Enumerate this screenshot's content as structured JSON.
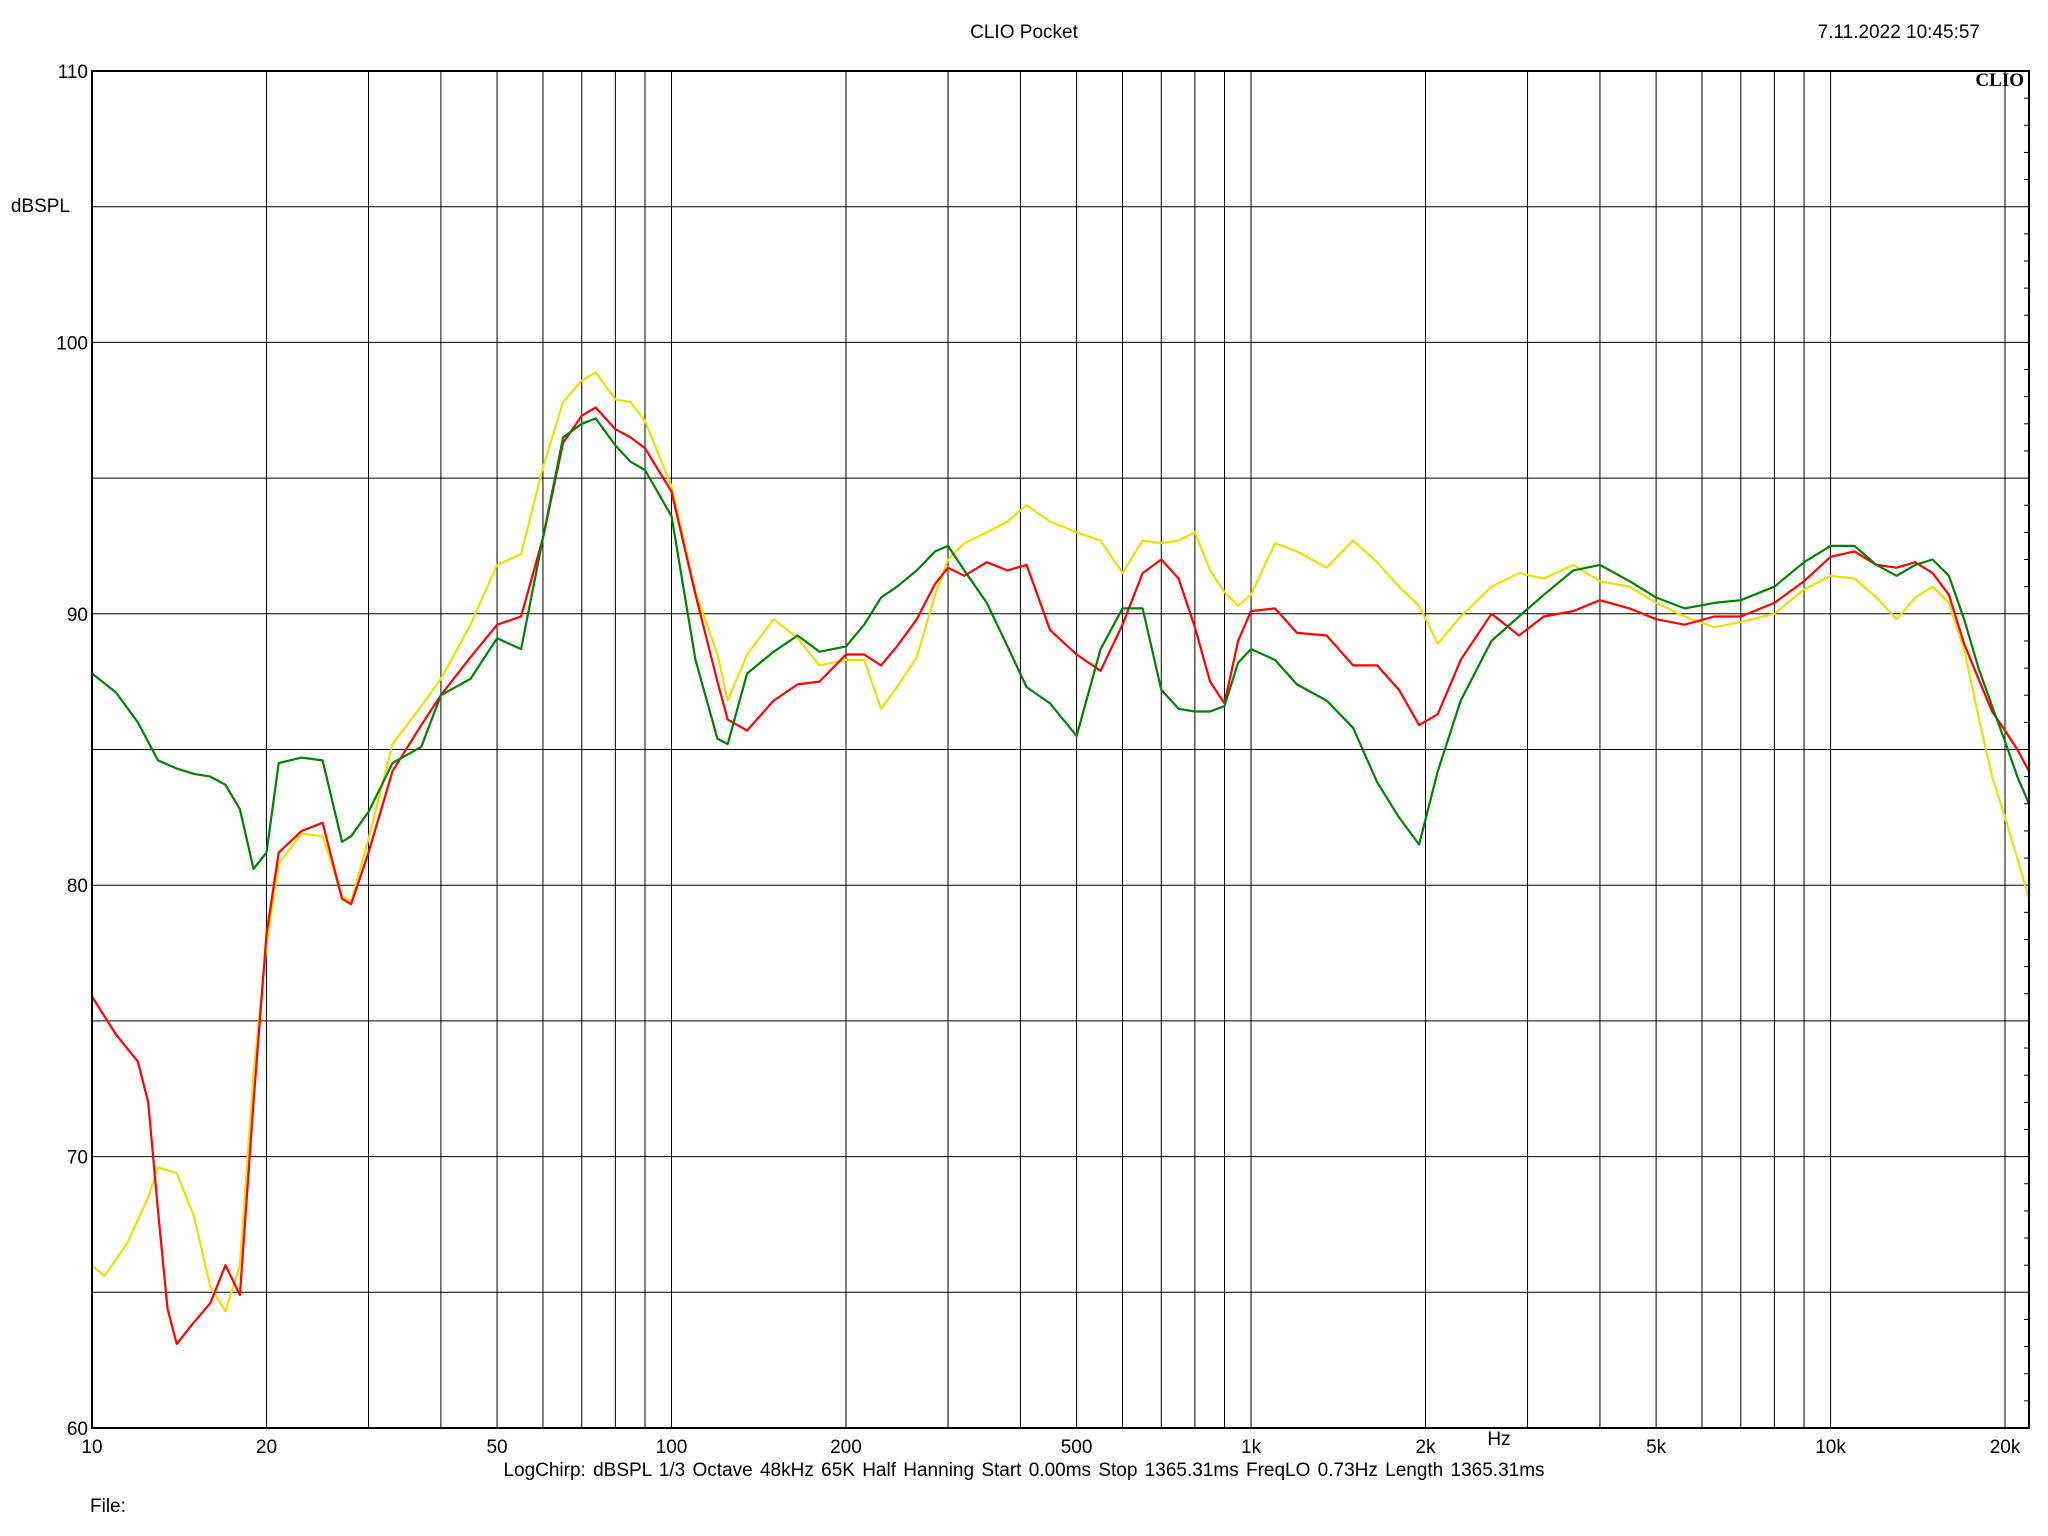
{
  "header": {
    "title": "CLIO Pocket",
    "datetime": "7.11.2022 10:45:57",
    "brand": "CLIO"
  },
  "footer": {
    "settings": "LogChirp:  dBSPL   1/3 Octave   48kHz   65K   Half Hanning   Start 0.00ms    Stop 1365.31ms    FreqLO 0.73Hz    Length 1365.31ms",
    "file_label": "File:"
  },
  "chart_data": {
    "type": "line",
    "title": "CLIO Pocket",
    "xlabel": "Hz",
    "ylabel": "dBSPL",
    "x_scale": "log",
    "xlim": [
      10,
      22000
    ],
    "ylim": [
      60,
      110
    ],
    "grid": true,
    "legend": "none",
    "y_ticks": [
      60,
      70,
      80,
      90,
      100,
      110
    ],
    "x_ticks": [
      {
        "value": 10,
        "label": "10"
      },
      {
        "value": 20,
        "label": "20"
      },
      {
        "value": 50,
        "label": "50"
      },
      {
        "value": 100,
        "label": "100"
      },
      {
        "value": 200,
        "label": "200"
      },
      {
        "value": 500,
        "label": "500"
      },
      {
        "value": 1000,
        "label": "1k"
      },
      {
        "value": 2000,
        "label": "2k"
      },
      {
        "value": 5000,
        "label": "5k"
      },
      {
        "value": 10000,
        "label": "10k"
      },
      {
        "value": 20000,
        "label": "20k"
      }
    ],
    "series": [
      {
        "color": "#e8e000",
        "points": [
          [
            10,
            66
          ],
          [
            10.5,
            65.6
          ],
          [
            11.5,
            66.8
          ],
          [
            12.5,
            68.5
          ],
          [
            13,
            69.6
          ],
          [
            14,
            69.4
          ],
          [
            15,
            67.8
          ],
          [
            16,
            65.2
          ],
          [
            17,
            64.3
          ],
          [
            18,
            66
          ],
          [
            19,
            73
          ],
          [
            20,
            77.8
          ],
          [
            21,
            80.8
          ],
          [
            23,
            81.9
          ],
          [
            25,
            81.8
          ],
          [
            27,
            79.6
          ],
          [
            28,
            79.4
          ],
          [
            30,
            81.7
          ],
          [
            33,
            85.2
          ],
          [
            37,
            86.6
          ],
          [
            40,
            87.6
          ],
          [
            45,
            89.6
          ],
          [
            50,
            91.8
          ],
          [
            55,
            92.2
          ],
          [
            60,
            95.4
          ],
          [
            65,
            97.8
          ],
          [
            70,
            98.6
          ],
          [
            74,
            98.9
          ],
          [
            80,
            97.9
          ],
          [
            85,
            97.8
          ],
          [
            90,
            97.1
          ],
          [
            100,
            94.7
          ],
          [
            110,
            90.8
          ],
          [
            120,
            88.5
          ],
          [
            125,
            86.8
          ],
          [
            135,
            88.5
          ],
          [
            150,
            89.8
          ],
          [
            165,
            89.1
          ],
          [
            180,
            88.1
          ],
          [
            200,
            88.3
          ],
          [
            215,
            88.3
          ],
          [
            230,
            86.5
          ],
          [
            245,
            87.3
          ],
          [
            265,
            88.4
          ],
          [
            285,
            90.7
          ],
          [
            300,
            92
          ],
          [
            320,
            92.6
          ],
          [
            350,
            93
          ],
          [
            380,
            93.4
          ],
          [
            410,
            94
          ],
          [
            450,
            93.4
          ],
          [
            500,
            93
          ],
          [
            550,
            92.7
          ],
          [
            600,
            91.5
          ],
          [
            650,
            92.7
          ],
          [
            700,
            92.6
          ],
          [
            750,
            92.7
          ],
          [
            800,
            93
          ],
          [
            850,
            91.6
          ],
          [
            900,
            90.8
          ],
          [
            950,
            90.3
          ],
          [
            1000,
            90.7
          ],
          [
            1100,
            92.6
          ],
          [
            1200,
            92.3
          ],
          [
            1350,
            91.7
          ],
          [
            1500,
            92.7
          ],
          [
            1650,
            91.9
          ],
          [
            1800,
            91
          ],
          [
            1950,
            90.3
          ],
          [
            2100,
            88.9
          ],
          [
            2300,
            89.9
          ],
          [
            2600,
            91
          ],
          [
            2900,
            91.5
          ],
          [
            3200,
            91.3
          ],
          [
            3600,
            91.8
          ],
          [
            4000,
            91.2
          ],
          [
            4500,
            91
          ],
          [
            5000,
            90.4
          ],
          [
            5600,
            89.9
          ],
          [
            6300,
            89.5
          ],
          [
            7000,
            89.7
          ],
          [
            8000,
            90
          ],
          [
            9000,
            90.9
          ],
          [
            10000,
            91.4
          ],
          [
            11000,
            91.3
          ],
          [
            12000,
            90.6
          ],
          [
            13000,
            89.8
          ],
          [
            14000,
            90.6
          ],
          [
            15000,
            91
          ],
          [
            16000,
            90.4
          ],
          [
            17000,
            88.7
          ],
          [
            18000,
            86.2
          ],
          [
            19000,
            84
          ],
          [
            20000,
            82.5
          ],
          [
            21000,
            81
          ],
          [
            22000,
            79.5
          ]
        ]
      },
      {
        "color": "#ff0000",
        "points": [
          [
            10,
            75.9
          ],
          [
            11,
            74.5
          ],
          [
            12,
            73.5
          ],
          [
            12.5,
            72
          ],
          [
            13,
            68
          ],
          [
            13.5,
            64.4
          ],
          [
            14,
            63.1
          ],
          [
            15,
            63.9
          ],
          [
            16,
            64.6
          ],
          [
            17,
            66
          ],
          [
            18,
            64.9
          ],
          [
            19,
            72
          ],
          [
            20,
            78.2
          ],
          [
            21,
            81.2
          ],
          [
            23,
            82
          ],
          [
            25,
            82.3
          ],
          [
            27,
            79.5
          ],
          [
            28,
            79.3
          ],
          [
            30,
            81.2
          ],
          [
            33,
            84.2
          ],
          [
            37,
            85.9
          ],
          [
            40,
            87
          ],
          [
            45,
            88.4
          ],
          [
            50,
            89.6
          ],
          [
            55,
            89.9
          ],
          [
            60,
            92.8
          ],
          [
            65,
            96.3
          ],
          [
            70,
            97.3
          ],
          [
            74,
            97.6
          ],
          [
            80,
            96.8
          ],
          [
            85,
            96.5
          ],
          [
            90,
            96.1
          ],
          [
            100,
            94.5
          ],
          [
            110,
            90.7
          ],
          [
            120,
            87.5
          ],
          [
            125,
            86.1
          ],
          [
            135,
            85.7
          ],
          [
            150,
            86.8
          ],
          [
            165,
            87.4
          ],
          [
            180,
            87.5
          ],
          [
            200,
            88.5
          ],
          [
            215,
            88.5
          ],
          [
            230,
            88.1
          ],
          [
            245,
            88.8
          ],
          [
            265,
            89.8
          ],
          [
            285,
            91.1
          ],
          [
            300,
            91.7
          ],
          [
            320,
            91.4
          ],
          [
            350,
            91.9
          ],
          [
            380,
            91.6
          ],
          [
            410,
            91.8
          ],
          [
            450,
            89.4
          ],
          [
            500,
            88.5
          ],
          [
            550,
            87.9
          ],
          [
            600,
            89.6
          ],
          [
            650,
            91.5
          ],
          [
            700,
            92
          ],
          [
            750,
            91.3
          ],
          [
            800,
            89.5
          ],
          [
            850,
            87.5
          ],
          [
            900,
            86.7
          ],
          [
            950,
            89
          ],
          [
            1000,
            90.1
          ],
          [
            1100,
            90.2
          ],
          [
            1200,
            89.3
          ],
          [
            1350,
            89.2
          ],
          [
            1500,
            88.1
          ],
          [
            1650,
            88.1
          ],
          [
            1800,
            87.2
          ],
          [
            1950,
            85.9
          ],
          [
            2100,
            86.3
          ],
          [
            2300,
            88.3
          ],
          [
            2600,
            90
          ],
          [
            2900,
            89.2
          ],
          [
            3200,
            89.9
          ],
          [
            3600,
            90.1
          ],
          [
            4000,
            90.5
          ],
          [
            4500,
            90.2
          ],
          [
            5000,
            89.8
          ],
          [
            5600,
            89.6
          ],
          [
            6300,
            89.9
          ],
          [
            7000,
            89.9
          ],
          [
            8000,
            90.4
          ],
          [
            9000,
            91.2
          ],
          [
            10000,
            92.1
          ],
          [
            11000,
            92.3
          ],
          [
            12000,
            91.8
          ],
          [
            13000,
            91.7
          ],
          [
            14000,
            91.9
          ],
          [
            15000,
            91.5
          ],
          [
            16000,
            90.7
          ],
          [
            17000,
            88.9
          ],
          [
            18000,
            87.6
          ],
          [
            19000,
            86.4
          ],
          [
            20000,
            85.7
          ],
          [
            21000,
            85
          ],
          [
            22000,
            84.2
          ]
        ]
      },
      {
        "color": "#008000",
        "points": [
          [
            10,
            87.8
          ],
          [
            11,
            87.1
          ],
          [
            12,
            86
          ],
          [
            13,
            84.6
          ],
          [
            14,
            84.3
          ],
          [
            15,
            84.1
          ],
          [
            16,
            84
          ],
          [
            17,
            83.7
          ],
          [
            18,
            82.8
          ],
          [
            19,
            80.6
          ],
          [
            20,
            81.2
          ],
          [
            21,
            84.5
          ],
          [
            23,
            84.7
          ],
          [
            25,
            84.6
          ],
          [
            27,
            81.6
          ],
          [
            28,
            81.8
          ],
          [
            30,
            82.7
          ],
          [
            33,
            84.5
          ],
          [
            37,
            85.1
          ],
          [
            40,
            87
          ],
          [
            45,
            87.6
          ],
          [
            50,
            89.1
          ],
          [
            55,
            88.7
          ],
          [
            60,
            92.8
          ],
          [
            65,
            96.5
          ],
          [
            70,
            97
          ],
          [
            74,
            97.2
          ],
          [
            80,
            96.2
          ],
          [
            85,
            95.6
          ],
          [
            90,
            95.3
          ],
          [
            100,
            93.6
          ],
          [
            110,
            88.3
          ],
          [
            120,
            85.4
          ],
          [
            125,
            85.2
          ],
          [
            135,
            87.8
          ],
          [
            150,
            88.6
          ],
          [
            165,
            89.2
          ],
          [
            180,
            88.6
          ],
          [
            200,
            88.8
          ],
          [
            215,
            89.6
          ],
          [
            230,
            90.6
          ],
          [
            245,
            91
          ],
          [
            265,
            91.6
          ],
          [
            285,
            92.3
          ],
          [
            300,
            92.5
          ],
          [
            320,
            91.6
          ],
          [
            350,
            90.4
          ],
          [
            380,
            88.8
          ],
          [
            410,
            87.3
          ],
          [
            450,
            86.7
          ],
          [
            500,
            85.5
          ],
          [
            550,
            88.7
          ],
          [
            600,
            90.2
          ],
          [
            650,
            90.2
          ],
          [
            700,
            87.2
          ],
          [
            750,
            86.5
          ],
          [
            800,
            86.4
          ],
          [
            850,
            86.4
          ],
          [
            900,
            86.6
          ],
          [
            950,
            88.2
          ],
          [
            1000,
            88.7
          ],
          [
            1100,
            88.3
          ],
          [
            1200,
            87.4
          ],
          [
            1350,
            86.8
          ],
          [
            1500,
            85.8
          ],
          [
            1650,
            83.8
          ],
          [
            1800,
            82.5
          ],
          [
            1950,
            81.5
          ],
          [
            2100,
            84.2
          ],
          [
            2300,
            86.8
          ],
          [
            2600,
            89
          ],
          [
            2900,
            89.9
          ],
          [
            3200,
            90.7
          ],
          [
            3600,
            91.6
          ],
          [
            4000,
            91.8
          ],
          [
            4500,
            91.2
          ],
          [
            5000,
            90.6
          ],
          [
            5600,
            90.2
          ],
          [
            6300,
            90.4
          ],
          [
            7000,
            90.5
          ],
          [
            8000,
            91
          ],
          [
            9000,
            91.9
          ],
          [
            10000,
            92.5
          ],
          [
            11000,
            92.5
          ],
          [
            12000,
            91.8
          ],
          [
            13000,
            91.4
          ],
          [
            14000,
            91.8
          ],
          [
            15000,
            92
          ],
          [
            16000,
            91.4
          ],
          [
            17000,
            89.8
          ],
          [
            18000,
            88
          ],
          [
            19000,
            86.6
          ],
          [
            20000,
            85.3
          ],
          [
            21000,
            84
          ],
          [
            22000,
            83
          ]
        ]
      }
    ]
  }
}
